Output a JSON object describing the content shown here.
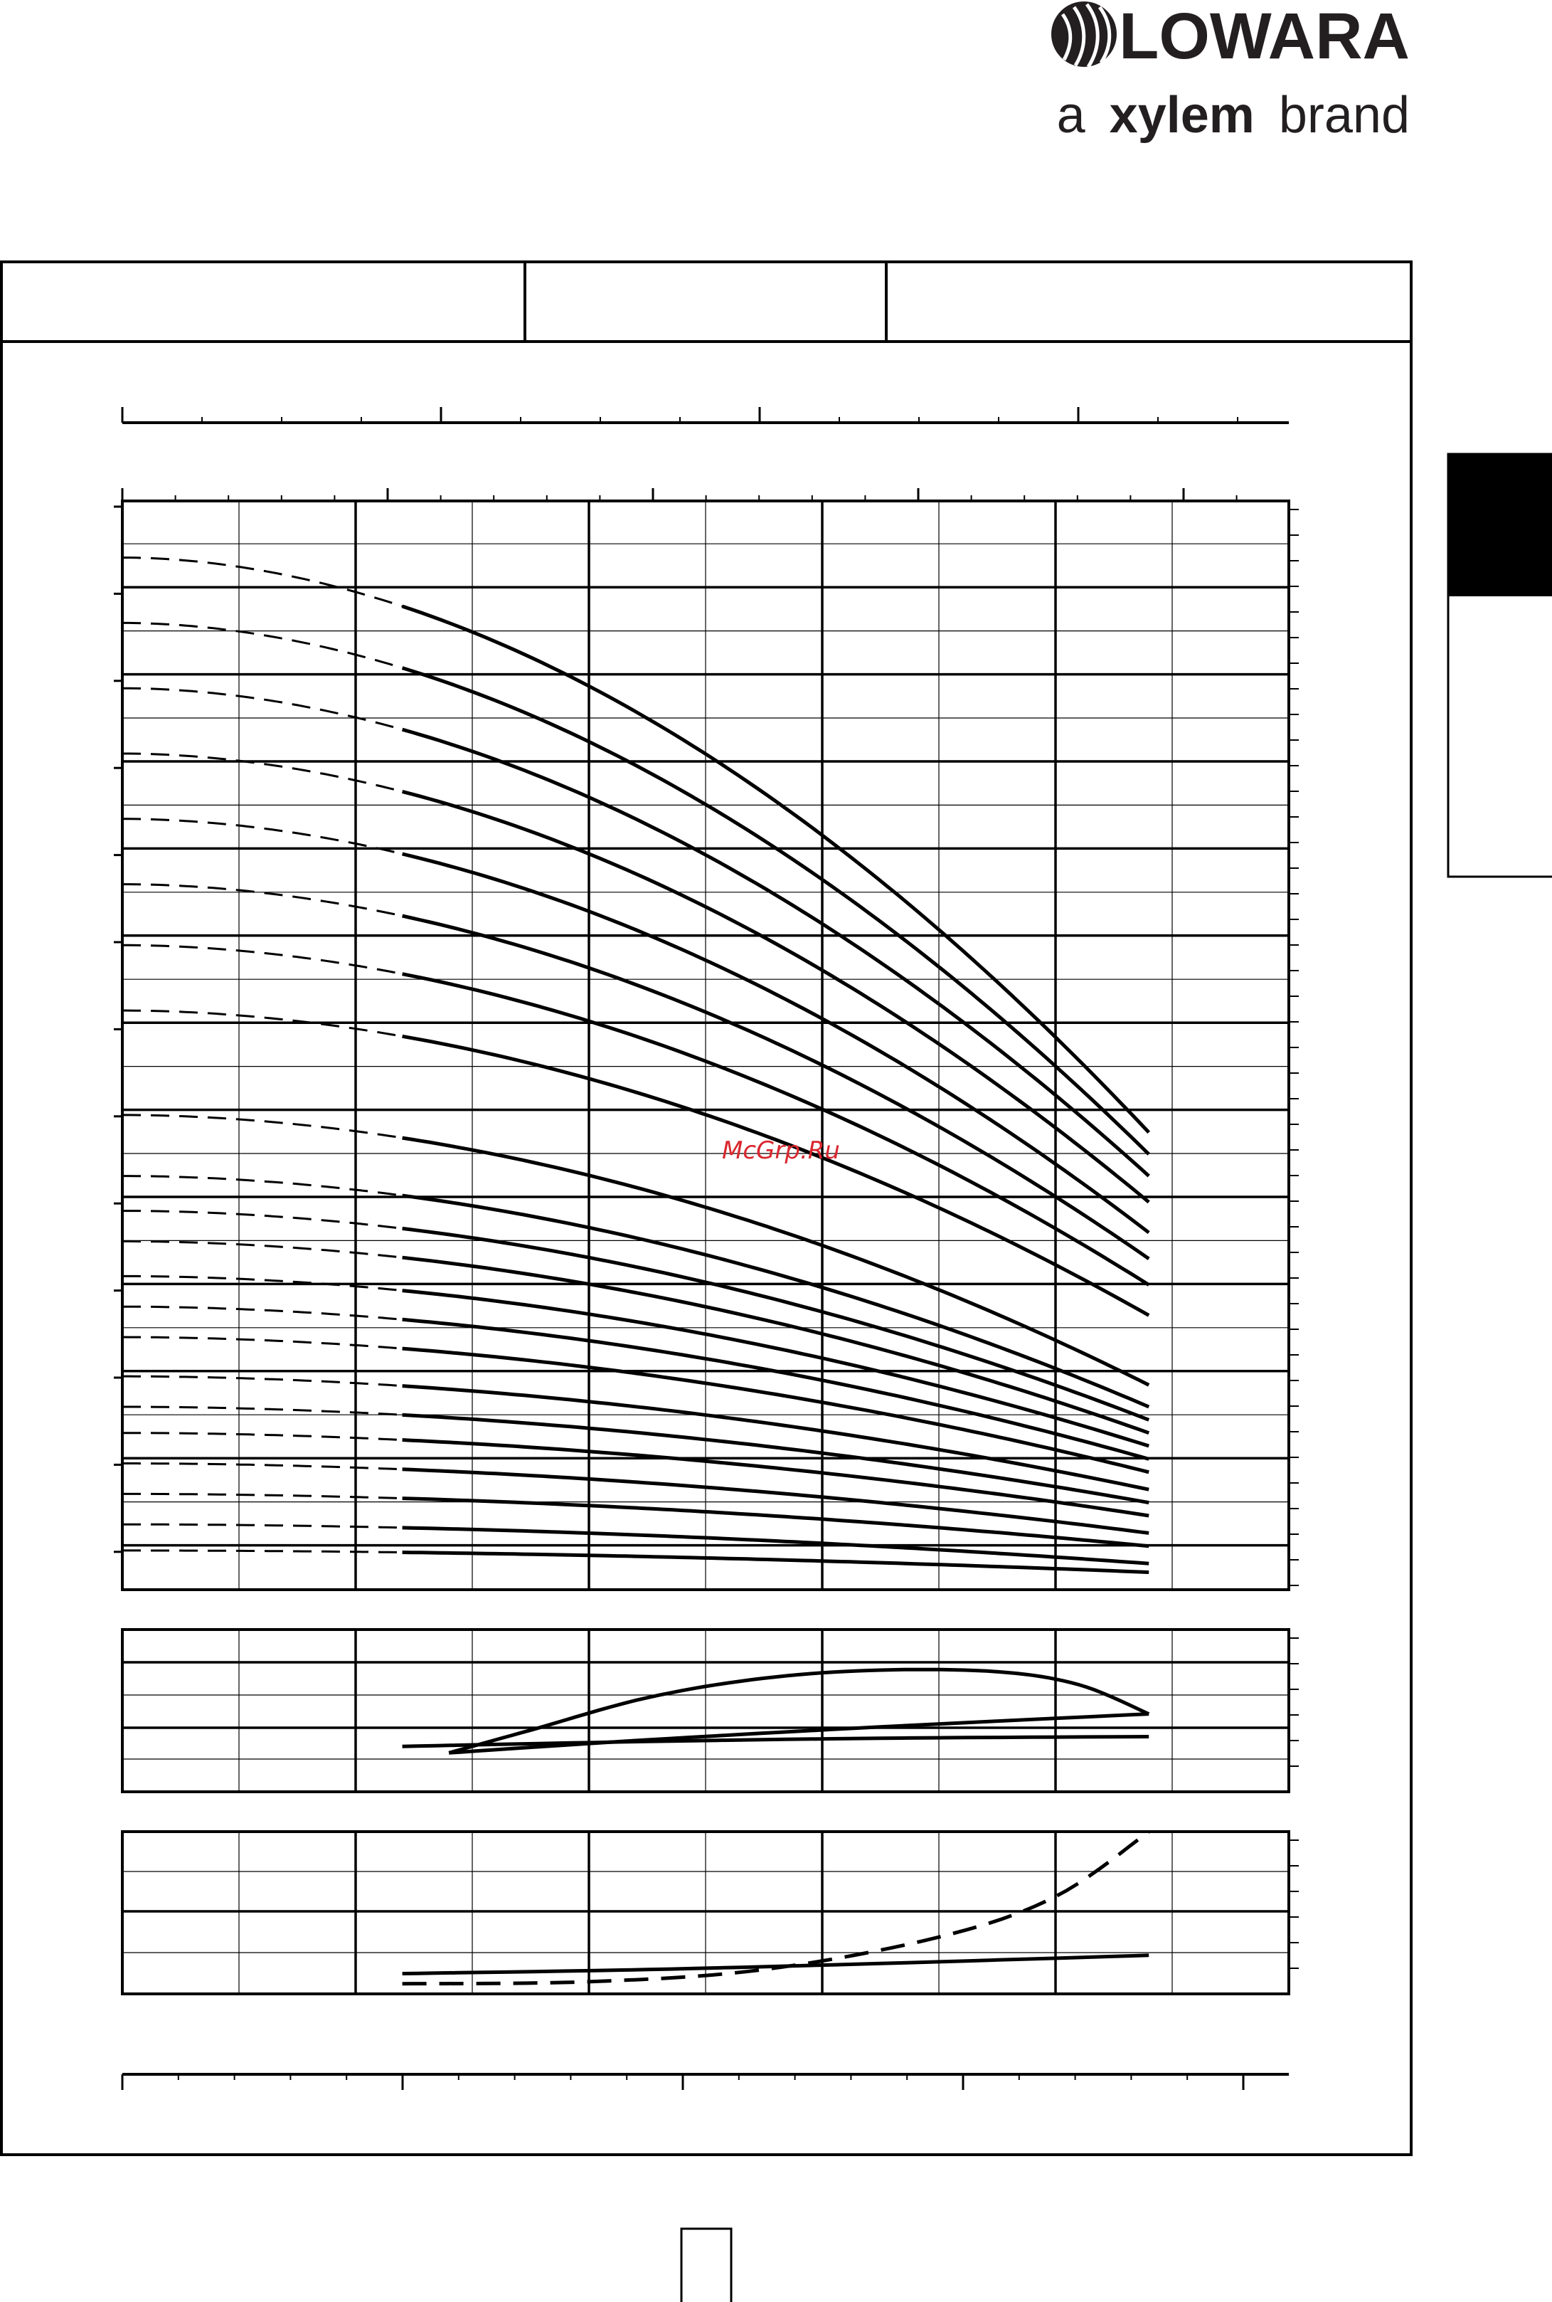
{
  "brand": {
    "name": "LOWARA",
    "tagline_prefix": "a",
    "tagline_mark": "xylem",
    "tagline_suffix": "brand",
    "color": "#231f20"
  },
  "watermark": {
    "text": "McGrp.Ru",
    "color": "#d9272e"
  },
  "colors": {
    "line": "#000000",
    "grid": "#000000",
    "paper": "#ffffff",
    "side_tab": "#000000"
  },
  "chart_data": [
    {
      "type": "line",
      "title": "",
      "xlabel": "",
      "ylabel": "",
      "xlim": [
        0,
        10
      ],
      "ylim": [
        0,
        12.5
      ],
      "grid": true,
      "note": "unlabeled head curves; dashed segment at low flow, solid in the operating range",
      "series": [
        {
          "shutoff": 11.85,
          "end": 5.25
        },
        {
          "shutoff": 11.1,
          "end": 5.0
        },
        {
          "shutoff": 10.35,
          "end": 4.75
        },
        {
          "shutoff": 9.6,
          "end": 4.45
        },
        {
          "shutoff": 8.85,
          "end": 4.1
        },
        {
          "shutoff": 8.1,
          "end": 3.8
        },
        {
          "shutoff": 7.4,
          "end": 3.5
        },
        {
          "shutoff": 6.65,
          "end": 3.15
        },
        {
          "shutoff": 5.45,
          "end": 2.35
        },
        {
          "shutoff": 4.75,
          "end": 2.1
        },
        {
          "shutoff": 4.35,
          "end": 1.95
        },
        {
          "shutoff": 4.0,
          "end": 1.8
        },
        {
          "shutoff": 3.6,
          "end": 1.65
        },
        {
          "shutoff": 3.25,
          "end": 1.5
        },
        {
          "shutoff": 2.9,
          "end": 1.35
        },
        {
          "shutoff": 2.45,
          "end": 1.15
        },
        {
          "shutoff": 2.1,
          "end": 1.0
        },
        {
          "shutoff": 1.8,
          "end": 0.85
        },
        {
          "shutoff": 1.45,
          "end": 0.65
        },
        {
          "shutoff": 1.1,
          "end": 0.5
        },
        {
          "shutoff": 0.75,
          "end": 0.3
        },
        {
          "shutoff": 0.45,
          "end": 0.2
        }
      ]
    },
    {
      "type": "line",
      "title": "",
      "xlabel": "",
      "ylabel": "",
      "xlim": [
        0,
        10
      ],
      "ylim": [
        0,
        5
      ],
      "grid": true,
      "series": [
        {
          "x": [
            2.8,
            3.5,
            4.5,
            5.5,
            6.5,
            7.5,
            8.2,
            8.8
          ],
          "y": [
            1.2,
            1.9,
            2.9,
            3.5,
            3.75,
            3.7,
            3.3,
            2.4
          ]
        },
        {
          "x": [
            2.8,
            4.5,
            6.5,
            8.8
          ],
          "y": [
            1.2,
            1.6,
            2.0,
            2.4
          ]
        },
        {
          "x": [
            2.4,
            4.5,
            6.5,
            8.8
          ],
          "y": [
            1.4,
            1.55,
            1.65,
            1.7
          ]
        }
      ]
    },
    {
      "type": "line",
      "title": "",
      "xlabel": "",
      "ylabel": "",
      "xlim": [
        0,
        10
      ],
      "ylim": [
        0,
        4
      ],
      "grid": true,
      "series": [
        {
          "x": [
            2.4,
            4.5,
            6.5,
            8.8
          ],
          "y": [
            0.5,
            0.6,
            0.75,
            0.95
          ]
        },
        {
          "x": [
            2.4,
            4.0,
            5.5,
            7.0,
            8.0,
            8.8
          ],
          "y": [
            0.25,
            0.3,
            0.6,
            1.4,
            2.4,
            4.0
          ]
        }
      ]
    }
  ]
}
